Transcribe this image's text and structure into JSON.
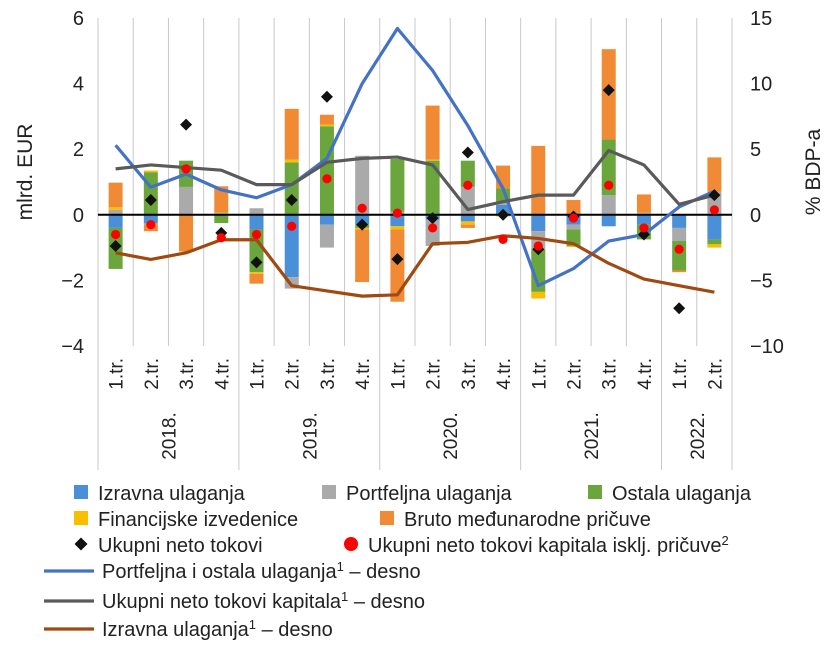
{
  "chart_data": {
    "type": "bar",
    "categories": [
      {
        "quarter": "1.tr.",
        "year": "2018."
      },
      {
        "quarter": "2.tr.",
        "year": "2018."
      },
      {
        "quarter": "3.tr.",
        "year": "2018."
      },
      {
        "quarter": "4.tr.",
        "year": "2018."
      },
      {
        "quarter": "1.tr.",
        "year": "2019."
      },
      {
        "quarter": "2.tr.",
        "year": "2019."
      },
      {
        "quarter": "3.tr.",
        "year": "2019."
      },
      {
        "quarter": "4.tr.",
        "year": "2019."
      },
      {
        "quarter": "1.tr.",
        "year": "2020."
      },
      {
        "quarter": "2.tr.",
        "year": "2020."
      },
      {
        "quarter": "3.tr.",
        "year": "2020."
      },
      {
        "quarter": "4.tr.",
        "year": "2020."
      },
      {
        "quarter": "1.tr.",
        "year": "2021."
      },
      {
        "quarter": "2.tr.",
        "year": "2021."
      },
      {
        "quarter": "3.tr.",
        "year": "2021."
      },
      {
        "quarter": "4.tr.",
        "year": "2021."
      },
      {
        "quarter": "1.tr.",
        "year": "2022."
      },
      {
        "quarter": "2.tr.",
        "year": "2022."
      }
    ],
    "years": [
      "2018.",
      "2019.",
      "2020.",
      "2021.",
      "2022."
    ],
    "ylabel_left": "mlrd. EUR",
    "ylabel_right": "% BDP-a",
    "ylim_left": [
      -4,
      6
    ],
    "ylim_right": [
      -10,
      15
    ],
    "yticks_left": [
      6,
      4,
      2,
      0,
      -2,
      -4
    ],
    "yticks_right": [
      15,
      10,
      5,
      0,
      -5,
      -10
    ],
    "ytick_labels_left": [
      "6",
      "4",
      "2",
      "0",
      "−2",
      "−4"
    ],
    "ytick_labels_right": [
      "15",
      "10",
      "5",
      "0",
      "−5",
      "−10"
    ],
    "bar_series": [
      {
        "name": "Izravna ulaganja",
        "color": "#4a90d9",
        "values": [
          -0.4,
          -0.25,
          0,
          0,
          -0.45,
          -1.9,
          -0.3,
          -0.3,
          -0.35,
          -0.15,
          -0.2,
          0.3,
          -0.5,
          -0.3,
          -0.35,
          -0.3,
          -0.4,
          -0.75
        ]
      },
      {
        "name": "Portfeljna ulaganja",
        "color": "#aaaaaa",
        "values": [
          0.15,
          -0.05,
          0.85,
          0.05,
          0.2,
          -0.35,
          -0.7,
          1.8,
          0.1,
          -0.8,
          0.85,
          0.1,
          -0.55,
          -0.15,
          0.6,
          0.05,
          -0.4,
          0.7
        ]
      },
      {
        "name": "Ostala ulaganja",
        "color": "#6aa63c",
        "values": [
          -1.25,
          1.3,
          0.8,
          -0.25,
          -1.3,
          1.6,
          2.7,
          -0.1,
          1.6,
          1.65,
          0.8,
          0.4,
          -1.3,
          -0.5,
          1.7,
          -0.45,
          -0.9,
          -0.15
        ]
      },
      {
        "name": "Financijske izvedenice",
        "color": "#f7bf00",
        "values": [
          0.08,
          0.05,
          -0.02,
          0.02,
          -0.05,
          0.08,
          0.05,
          -0.05,
          -0.1,
          0.03,
          -0.1,
          -0.05,
          -0.2,
          -0.03,
          0,
          0.02,
          0,
          -0.1
        ]
      },
      {
        "name": "Bruto međunarodne pričuve",
        "color": "#f08a35",
        "values": [
          0.75,
          -0.2,
          -1.1,
          0.8,
          -0.3,
          1.55,
          0.3,
          -1.6,
          -2.2,
          1.65,
          -0.1,
          0.7,
          2.1,
          0.45,
          2.75,
          0.55,
          -0.05,
          1.05
        ]
      }
    ],
    "marker_series": [
      {
        "name": "Ukupni neto tokovi",
        "marker": "diamond",
        "color": "#111111",
        "values": [
          -0.95,
          0.45,
          2.75,
          -0.55,
          -1.45,
          0.45,
          3.6,
          -0.3,
          -1.35,
          -0.1,
          1.9,
          0,
          -1.05,
          -0.05,
          3.8,
          -0.6,
          -2.85,
          0.6
        ]
      },
      {
        "name": "Ukupni neto tokovi kapitala isklj. pričuve",
        "sup": "2",
        "marker": "circle",
        "color": "#ff0000",
        "values": [
          -0.6,
          -0.3,
          1.4,
          -0.7,
          -0.6,
          -0.35,
          1.1,
          0.2,
          0.05,
          -0.4,
          0.9,
          -0.75,
          -0.95,
          -0.1,
          0.9,
          -0.4,
          -1.05,
          0.15
        ]
      }
    ],
    "line_series": [
      {
        "name": "Portfeljna i ostala ulaganja",
        "sup": "1",
        "suffix": " – desno",
        "color": "#4472c4",
        "axis": "right",
        "values": [
          5.3,
          2.1,
          3.1,
          1.9,
          1.3,
          2.3,
          4.3,
          10.0,
          14.2,
          11.0,
          6.8,
          2.0,
          -5.4,
          -4.1,
          -2.0,
          -1.5,
          0.6,
          1.8
        ]
      },
      {
        "name": "Ukupni neto tokovi kapitala",
        "sup": "1",
        "suffix": " – desno",
        "color": "#5a5a5a",
        "axis": "right",
        "values": [
          3.5,
          3.8,
          3.6,
          3.4,
          2.3,
          2.3,
          4.0,
          4.3,
          4.4,
          3.8,
          0.4,
          1.0,
          1.5,
          1.5,
          4.9,
          3.8,
          0.8,
          1.5
        ]
      },
      {
        "name": "Izravna ulaganja",
        "sup": "1",
        "suffix": " – desno",
        "color": "#9e4a10",
        "axis": "right",
        "values": [
          -2.9,
          -3.4,
          -2.9,
          -1.9,
          -1.9,
          -5.4,
          -5.8,
          -6.2,
          -6.1,
          -2.2,
          -2.1,
          -1.6,
          -1.8,
          -2.2,
          -3.7,
          -4.9,
          -5.4,
          -5.9
        ]
      }
    ],
    "legend_placement": "bottom",
    "grid": "vertical"
  }
}
